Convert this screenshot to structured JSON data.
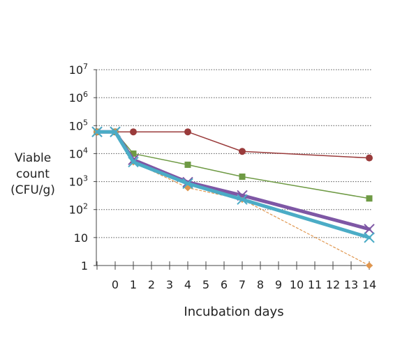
{
  "chart_data": {
    "type": "line",
    "title": "",
    "xlabel": "Incubation days",
    "ylabel_lines": [
      "Viable",
      "count",
      "(CFU/g)"
    ],
    "y_scale": "log",
    "ylim": [
      1,
      10000000
    ],
    "y_tick_labels": [
      {
        "value": 1,
        "base": "1",
        "exp": ""
      },
      {
        "value": 10,
        "base": "10",
        "exp": ""
      },
      {
        "value": 100,
        "base": "10",
        "exp": "2"
      },
      {
        "value": 1000,
        "base": "10",
        "exp": "3"
      },
      {
        "value": 10000,
        "base": "10",
        "exp": "4"
      },
      {
        "value": 100000,
        "base": "10",
        "exp": "5"
      },
      {
        "value": 1000000,
        "base": "10",
        "exp": "6"
      },
      {
        "value": 10000000,
        "base": "10",
        "exp": "7"
      }
    ],
    "x_tick_labels": [
      "0",
      "1",
      "2",
      "3",
      "4",
      "5",
      "6",
      "7",
      "8",
      "9",
      "10",
      "11",
      "12",
      "13",
      "14"
    ],
    "grid": "horizontal dotted",
    "legend": "none",
    "series": [
      {
        "color": "#9a3b3b",
        "marker": "circle",
        "dashed": false,
        "width": 1.5,
        "points": [
          [
            -1,
            60000
          ],
          [
            0,
            60000
          ],
          [
            1,
            60000
          ],
          [
            4,
            60000
          ],
          [
            7,
            12000
          ],
          [
            14,
            7000
          ]
        ]
      },
      {
        "color": "#6e9a44",
        "marker": "square",
        "dashed": false,
        "width": 1.5,
        "points": [
          [
            -1,
            60000
          ],
          [
            0,
            60000
          ],
          [
            1,
            10000
          ],
          [
            4,
            4000
          ],
          [
            7,
            1500
          ],
          [
            14,
            250
          ]
        ]
      },
      {
        "color": "#e0964e",
        "marker": "diamond",
        "dashed": true,
        "width": 1.2,
        "points": [
          [
            -1,
            60000
          ],
          [
            0,
            60000
          ],
          [
            1,
            5000
          ],
          [
            4,
            600
          ],
          [
            7,
            230
          ],
          [
            14,
            1
          ]
        ]
      },
      {
        "color": "#7e57a5",
        "marker": "x",
        "dashed": false,
        "width": 5,
        "points": [
          [
            -1,
            60000
          ],
          [
            0,
            60000
          ],
          [
            1,
            6000
          ],
          [
            4,
            950
          ],
          [
            7,
            320
          ],
          [
            14,
            20
          ]
        ]
      },
      {
        "color": "#4bacc6",
        "marker": "x",
        "dashed": false,
        "width": 5,
        "points": [
          [
            -1,
            60000
          ],
          [
            0,
            60000
          ],
          [
            1,
            5000
          ],
          [
            4,
            850
          ],
          [
            7,
            230
          ],
          [
            14,
            10
          ]
        ]
      }
    ]
  }
}
